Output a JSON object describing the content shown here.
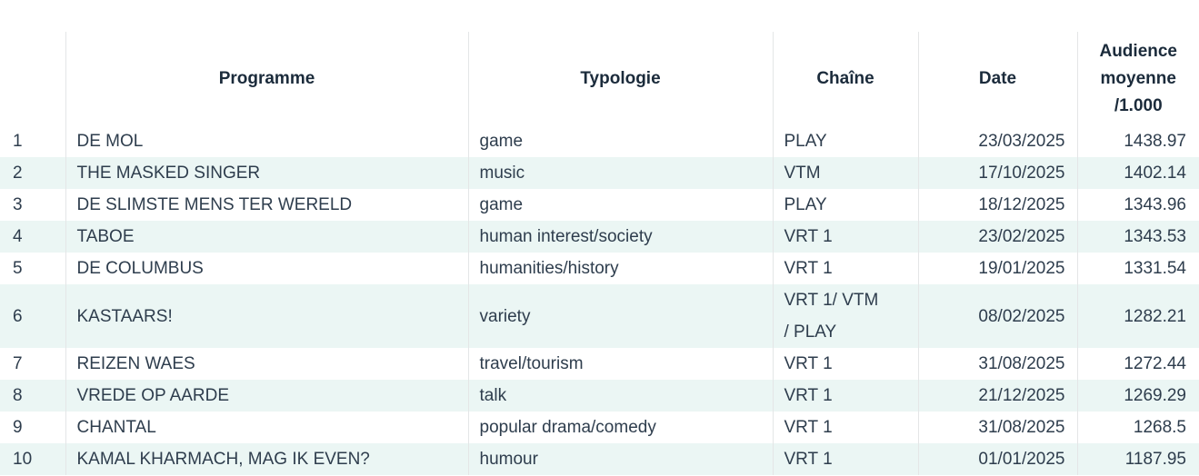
{
  "table": {
    "columns": [
      {
        "key": "rank",
        "label": ""
      },
      {
        "key": "programme",
        "label": "Programme"
      },
      {
        "key": "typologie",
        "label": "Typologie"
      },
      {
        "key": "chaine",
        "label": "Chaîne"
      },
      {
        "key": "date",
        "label": "Date"
      },
      {
        "key": "audience",
        "label": "Audience moyenne /1.000"
      }
    ],
    "rows": [
      {
        "rank": "1",
        "programme": "DE MOL",
        "typologie": "game",
        "chaine": "PLAY",
        "date": "23/03/2025",
        "audience": "1438.97"
      },
      {
        "rank": "2",
        "programme": "THE MASKED SINGER",
        "typologie": "music",
        "chaine": "VTM",
        "date": "17/10/2025",
        "audience": "1402.14"
      },
      {
        "rank": "3",
        "programme": "DE SLIMSTE MENS TER WERELD",
        "typologie": "game",
        "chaine": "PLAY",
        "date": "18/12/2025",
        "audience": "1343.96"
      },
      {
        "rank": "4",
        "programme": "TABOE",
        "typologie": "human interest/society",
        "chaine": "VRT 1",
        "date": "23/02/2025",
        "audience": "1343.53"
      },
      {
        "rank": "5",
        "programme": "DE COLUMBUS",
        "typologie": "humanities/history",
        "chaine": "VRT 1",
        "date": "19/01/2025",
        "audience": "1331.54"
      },
      {
        "rank": "6",
        "programme": "KASTAARS!",
        "typologie": "variety",
        "chaine": "VRT 1/ VTM\n/ PLAY",
        "date": "08/02/2025",
        "audience": "1282.21"
      },
      {
        "rank": "7",
        "programme": "REIZEN WAES",
        "typologie": "travel/tourism",
        "chaine": "VRT 1",
        "date": "31/08/2025",
        "audience": "1272.44"
      },
      {
        "rank": "8",
        "programme": "VREDE OP AARDE",
        "typologie": "talk",
        "chaine": "VRT 1",
        "date": "21/12/2025",
        "audience": "1269.29"
      },
      {
        "rank": "9",
        "programme": "CHANTAL",
        "typologie": "popular drama/comedy",
        "chaine": "VRT 1",
        "date": "31/08/2025",
        "audience": "1268.5"
      },
      {
        "rank": "10",
        "programme": "KAMAL KHARMACH, MAG IK EVEN?",
        "typologie": "humour",
        "chaine": "VRT 1",
        "date": "01/01/2025",
        "audience": "1187.95"
      }
    ]
  },
  "colors": {
    "stripe": "#ebf6f4",
    "border": "#e4e6e7",
    "header_text": "#1b2b3b",
    "body_text": "#2e3d4d"
  }
}
